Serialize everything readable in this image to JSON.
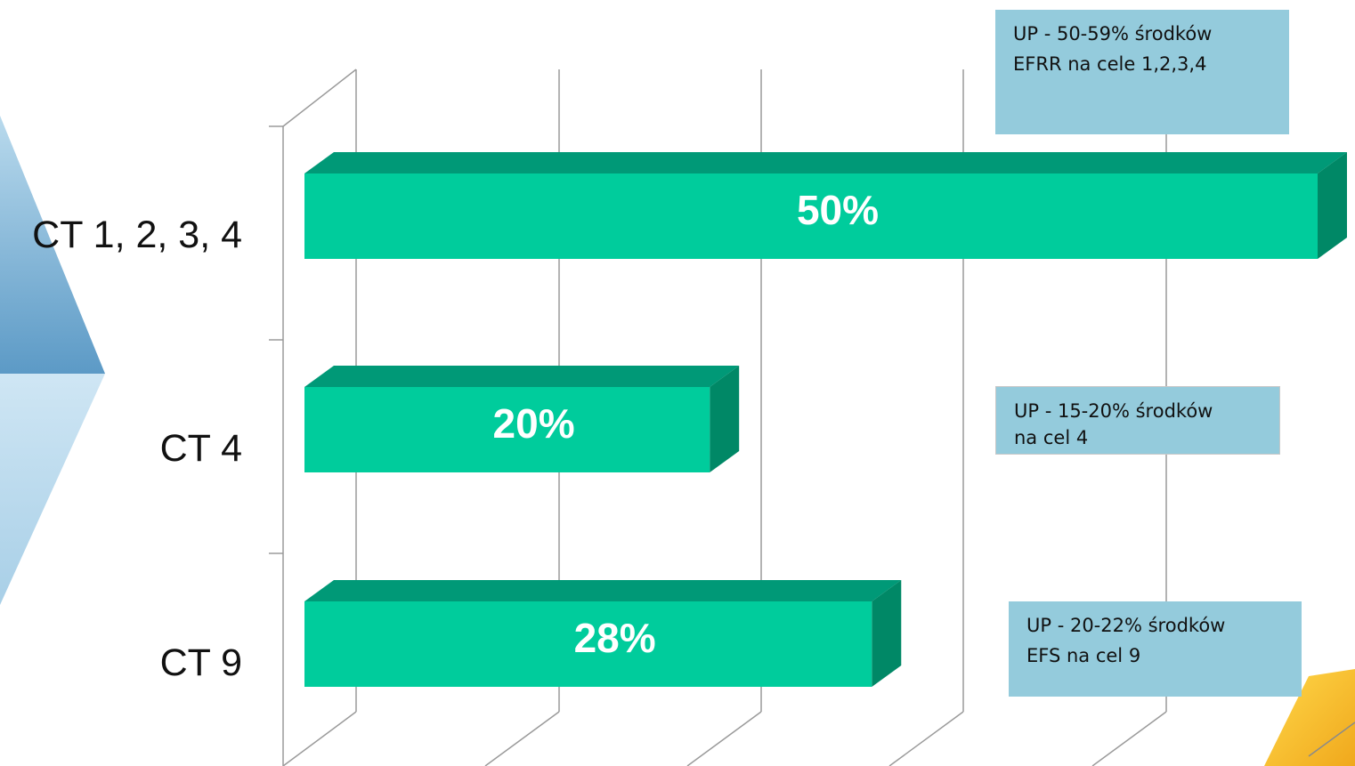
{
  "chart_data": {
    "type": "bar",
    "orientation": "horizontal",
    "style": "3d",
    "categories": [
      "CT 1, 2, 3, 4",
      "CT 4",
      "CT 9"
    ],
    "values": [
      50,
      20,
      28
    ],
    "value_labels": [
      "50%",
      "20%",
      "28%"
    ],
    "xlim": [
      0,
      50
    ],
    "grid": true,
    "title": "",
    "xlabel": "",
    "ylabel": ""
  },
  "notes": [
    {
      "line1": "UP -  50-59% środków",
      "line2": "EFRR na cele 1,2,3,4"
    },
    {
      "line1": "UP - 15-20% środków",
      "line2": "na cel 4"
    },
    {
      "line1": "UP - 20-22% środków",
      "line2": "EFS na cel  9"
    }
  ],
  "colors": {
    "bar_front": "#00cc9c",
    "bar_top": "#009977",
    "bar_side": "#008866",
    "grid": "#9a9a9a",
    "note_bg": "#94cbdc",
    "arrow": "#7db3d6"
  }
}
